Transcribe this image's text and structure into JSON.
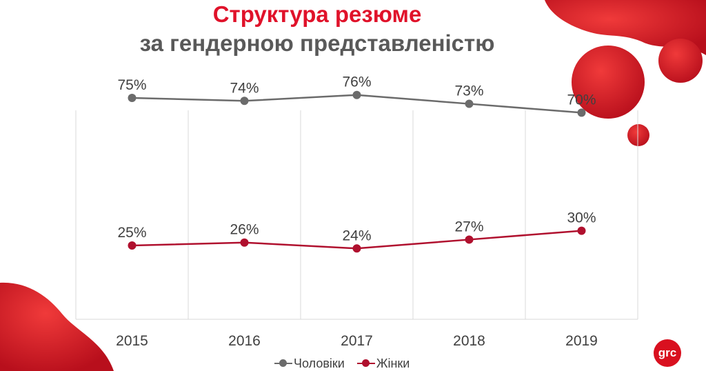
{
  "header": {
    "title": "Структура резюме",
    "subtitle": "за гендерною представленістю"
  },
  "brand": {
    "logo_text": "grc",
    "accent": "#e0122a",
    "dark_red": "#b0102e",
    "gray": "#6b6b6b"
  },
  "chart_data": {
    "type": "line",
    "title": "Структура резюме за гендерною представленістю",
    "categories": [
      "2015",
      "2016",
      "2017",
      "2018",
      "2019"
    ],
    "series": [
      {
        "name": "Чоловіки",
        "values": [
          75,
          74,
          76,
          73,
          70
        ],
        "labels": [
          "75%",
          "74%",
          "76%",
          "73%",
          "70%"
        ],
        "color": "#6b6b6b"
      },
      {
        "name": "Жінки",
        "values": [
          25,
          26,
          24,
          27,
          30
        ],
        "labels": [
          "25%",
          "26%",
          "24%",
          "27%",
          "30%"
        ],
        "color": "#b0102e"
      }
    ],
    "ylim": [
      0,
      100
    ],
    "y_axis_visible": false,
    "grid": "vertical",
    "legend_position": "bottom"
  }
}
